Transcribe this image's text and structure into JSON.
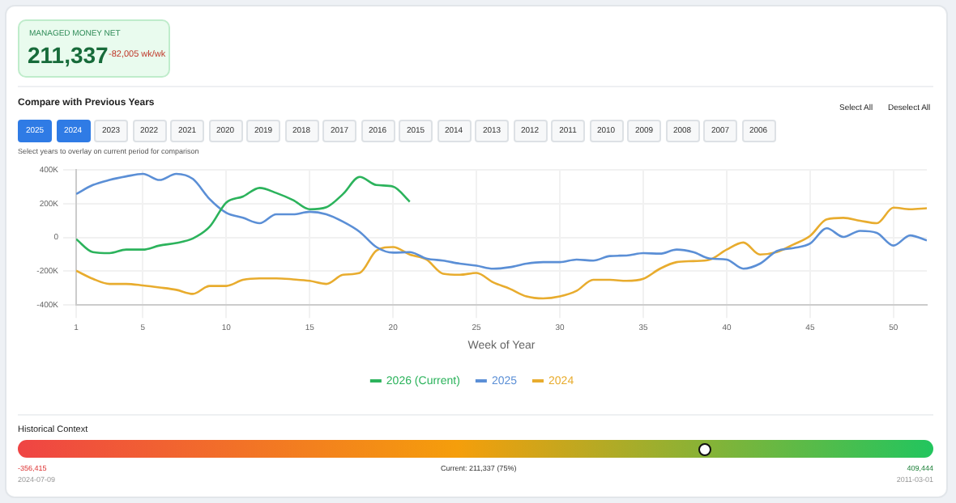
{
  "chart_data": {
    "type": "line",
    "title": "Compare with Previous Years",
    "xlabel": "Week of Year",
    "x": [
      1,
      2,
      3,
      4,
      5,
      6,
      7,
      8,
      9,
      10,
      11,
      12,
      13,
      14,
      15,
      16,
      17,
      18,
      19,
      20,
      21,
      22,
      23,
      24,
      25,
      26,
      27,
      28,
      29,
      30,
      31,
      32,
      33,
      34,
      35,
      36,
      37,
      38,
      39,
      40,
      41,
      42,
      43,
      44,
      45,
      46,
      47,
      48,
      49,
      50,
      51,
      52
    ],
    "series": [
      {
        "name": "2026 (Current)",
        "color": "#2cb35c",
        "values": [
          -10000,
          -87000,
          -93000,
          -72000,
          -72000,
          -48000,
          -33000,
          -6000,
          63000,
          206000,
          242000,
          293000,
          263000,
          221000,
          167000,
          179000,
          257000,
          358000,
          310000,
          301000,
          211337,
          null,
          null,
          null,
          null,
          null,
          null,
          null,
          null,
          null,
          null,
          null,
          null,
          null,
          null,
          null,
          null,
          null,
          null,
          null,
          null,
          null,
          null,
          null,
          null,
          null,
          null,
          null,
          null,
          null,
          null,
          null
        ]
      },
      {
        "name": "2025",
        "color": "#5b8fd6",
        "values": [
          257000,
          310000,
          340000,
          361000,
          376000,
          340000,
          376000,
          346000,
          227000,
          146000,
          116000,
          84000,
          137000,
          137000,
          152000,
          137000,
          93000,
          33000,
          -57000,
          -90000,
          -87000,
          -125000,
          -137000,
          -155000,
          -167000,
          -185000,
          -176000,
          -155000,
          -146000,
          -146000,
          -131000,
          -137000,
          -110000,
          -107000,
          -93000,
          -96000,
          -72000,
          -87000,
          -125000,
          -131000,
          -185000,
          -155000,
          -81000,
          -63000,
          -36000,
          54000,
          3000,
          39000,
          27000,
          -48000,
          12000,
          -18000
        ]
      },
      {
        "name": "2024",
        "color": "#e8ac2e",
        "values": [
          -197000,
          -245000,
          -275000,
          -275000,
          -284000,
          -296000,
          -310000,
          -334000,
          -287000,
          -287000,
          -251000,
          -242000,
          -242000,
          -248000,
          -257000,
          -275000,
          -221000,
          -210000,
          -78000,
          -57000,
          -101000,
          -131000,
          -215000,
          -221000,
          -210000,
          -266000,
          -304000,
          -349000,
          -361000,
          -349000,
          -316000,
          -251000,
          -251000,
          -257000,
          -245000,
          -185000,
          -146000,
          -140000,
          -131000,
          -72000,
          -30000,
          -101000,
          -87000,
          -42000,
          9000,
          107000,
          116000,
          99000,
          84000,
          176000,
          167000,
          173000
        ]
      }
    ],
    "xlim": [
      1,
      52
    ],
    "xticks": [
      1,
      5,
      10,
      15,
      20,
      25,
      30,
      35,
      40,
      45,
      50
    ],
    "ylim": [
      -400000,
      400000
    ],
    "yticks": [
      {
        "value": -400000,
        "label": "-400K"
      },
      {
        "value": -200000,
        "label": "-200K"
      },
      0,
      {
        "value": 200000,
        "label": "200K"
      },
      {
        "value": 400000,
        "label": "400K"
      }
    ],
    "grid": true,
    "legend": "bottom",
    "marker": "none",
    "line_style": "solid",
    "annotations": [
      "MANAGED MONEY NET",
      "211,337",
      "-82,005 wk/wk",
      "Select All",
      "Deselect All",
      "2025",
      "2024",
      "2023",
      "2022",
      "2021",
      "2020",
      "2019",
      "2018",
      "2017",
      "2016",
      "2015",
      "2014",
      "2013",
      "2012",
      "2011",
      "2010",
      "2009",
      "2008",
      "2007",
      "2006",
      "Select years to overlay on current period for comparison",
      "Historical Context",
      "-356,415",
      "2024-07-09",
      "Current: 211,337 (75%)",
      "409,444",
      "2011-03-01"
    ]
  }
}
